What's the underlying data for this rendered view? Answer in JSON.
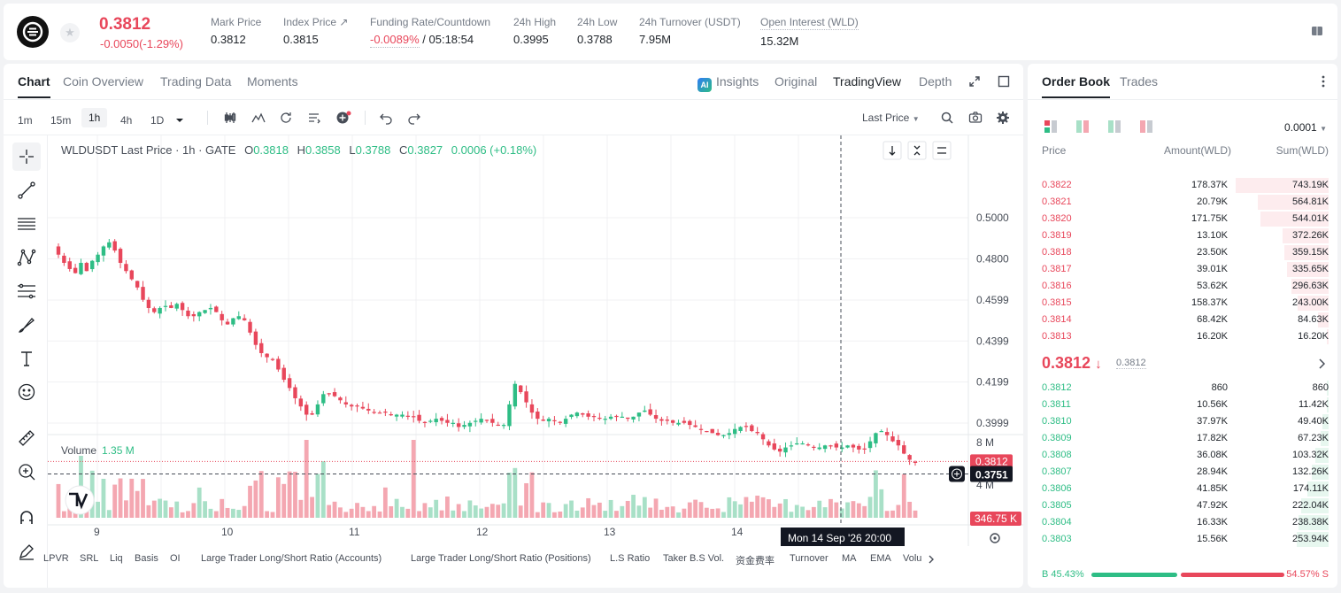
{
  "header": {
    "last_price": "0.3812",
    "change": "-0.0050(-1.29%)",
    "stats": [
      {
        "label": "Mark Price",
        "value": "0.3812"
      },
      {
        "label": "Index Price ↗",
        "value": "0.3815"
      },
      {
        "label": "Funding Rate/Countdown",
        "value_neg": "-0.0089%",
        "value": " / 05:18:54"
      },
      {
        "label": "24h High",
        "value": "0.3995"
      },
      {
        "label": "24h Low",
        "value": "0.3788"
      },
      {
        "label": "24h Turnover (USDT)",
        "value": "7.95M"
      },
      {
        "label": "Open Interest (WLD)",
        "value": "15.32M"
      }
    ]
  },
  "chart_tabs": [
    "Chart",
    "Coin Overview",
    "Trading Data",
    "Moments"
  ],
  "view_tabs": {
    "insights": "Insights",
    "original": "Original",
    "tradingview": "TradingView",
    "depth": "Depth"
  },
  "timeframes": [
    "1m",
    "15m",
    "1h",
    "4h",
    "1D"
  ],
  "price_type": "Last Price",
  "legend": {
    "symbol": "WLDUSDT Last Price · 1h · GATE",
    "o_label": "O",
    "o": "0.3818",
    "h_label": "H",
    "h": "0.3858",
    "l_label": "L",
    "l": "0.3788",
    "c_label": "C",
    "c": "0.3827",
    "chg": "0.0006 (+0.18%)"
  },
  "volume_legend": {
    "label": "Volume",
    "value": "1.35 M"
  },
  "price_axis": [
    "0.5000",
    "0.4800",
    "0.4599",
    "0.4399",
    "0.4199",
    "0.3999"
  ],
  "last_price_tag": "0.3812",
  "crosshair_price": "0.3751",
  "volume_axis": [
    "8 M",
    "4 M"
  ],
  "volume_tag": "346.75 K",
  "x_axis": [
    "9",
    "10",
    "11",
    "12",
    "13",
    "14"
  ],
  "crosshair_time": "Mon 14 Sep '26   20:00",
  "indicators": [
    "LPVR",
    "SRL",
    "Liq",
    "Basis",
    "OI",
    "Large Trader Long/Short Ratio (Accounts)",
    "Large Trader Long/Short Ratio (Positions)",
    "L.S Ratio",
    "Taker B.S Vol.",
    "资金费率",
    "Turnover",
    "MA",
    "EMA",
    "Volu"
  ],
  "orderbook": {
    "tabs": [
      "Order Book",
      "Trades"
    ],
    "precision": "0.0001",
    "headers": {
      "price": "Price",
      "amount": "Amount(WLD)",
      "sum": "Sum(WLD)"
    },
    "asks": [
      {
        "price": "0.3822",
        "amount": "178.37K",
        "sum": "743.19K",
        "depth": 1.0
      },
      {
        "price": "0.3821",
        "amount": "20.79K",
        "sum": "564.81K",
        "depth": 0.76
      },
      {
        "price": "0.3820",
        "amount": "171.75K",
        "sum": "544.01K",
        "depth": 0.73
      },
      {
        "price": "0.3819",
        "amount": "13.10K",
        "sum": "372.26K",
        "depth": 0.5
      },
      {
        "price": "0.3818",
        "amount": "23.50K",
        "sum": "359.15K",
        "depth": 0.48
      },
      {
        "price": "0.3817",
        "amount": "39.01K",
        "sum": "335.65K",
        "depth": 0.45
      },
      {
        "price": "0.3816",
        "amount": "53.62K",
        "sum": "296.63K",
        "depth": 0.4
      },
      {
        "price": "0.3815",
        "amount": "158.37K",
        "sum": "243.00K",
        "depth": 0.33
      },
      {
        "price": "0.3814",
        "amount": "68.42K",
        "sum": "84.63K",
        "depth": 0.11
      },
      {
        "price": "0.3813",
        "amount": "16.20K",
        "sum": "16.20K",
        "depth": 0.02
      }
    ],
    "mid_price": "0.3812",
    "mid_arrow": "↓",
    "mid_mark": "0.3812",
    "bids": [
      {
        "price": "0.3812",
        "amount": "860",
        "sum": "860",
        "depth": 0.0
      },
      {
        "price": "0.3811",
        "amount": "10.56K",
        "sum": "11.42K",
        "depth": 0.02
      },
      {
        "price": "0.3810",
        "amount": "37.97K",
        "sum": "49.40K",
        "depth": 0.07
      },
      {
        "price": "0.3809",
        "amount": "17.82K",
        "sum": "67.23K",
        "depth": 0.09
      },
      {
        "price": "0.3808",
        "amount": "36.08K",
        "sum": "103.32K",
        "depth": 0.14
      },
      {
        "price": "0.3807",
        "amount": "28.94K",
        "sum": "132.26K",
        "depth": 0.18
      },
      {
        "price": "0.3806",
        "amount": "41.85K",
        "sum": "174.11K",
        "depth": 0.23
      },
      {
        "price": "0.3805",
        "amount": "47.92K",
        "sum": "222.04K",
        "depth": 0.3
      },
      {
        "price": "0.3804",
        "amount": "16.33K",
        "sum": "238.38K",
        "depth": 0.32
      },
      {
        "price": "0.3803",
        "amount": "15.56K",
        "sum": "253.94K",
        "depth": 0.34
      }
    ],
    "buy_ratio": "B 45.43%",
    "sell_ratio": "54.57% S",
    "buy_fraction": 0.4543
  },
  "colors": {
    "up": "#2ebd85",
    "down": "#e8475b",
    "up_vol": "#a8e0c7",
    "down_vol": "#f4a7b1"
  },
  "chart_data": {
    "type": "candlestick",
    "symbol": "WLDUSDT",
    "interval": "1h",
    "x_ticks": [
      "9",
      "10",
      "11",
      "12",
      "13",
      "14"
    ],
    "y_ticks": [
      0.5,
      0.48,
      0.4599,
      0.4399,
      0.4199,
      0.3999
    ],
    "close_path": [
      0.482,
      0.478,
      0.475,
      0.473,
      0.478,
      0.474,
      0.479,
      0.482,
      0.486,
      0.488,
      0.484,
      0.478,
      0.474,
      0.47,
      0.466,
      0.46,
      0.456,
      0.454,
      0.456,
      0.457,
      0.456,
      0.458,
      0.455,
      0.452,
      0.452,
      0.454,
      0.455,
      0.456,
      0.454,
      0.45,
      0.448,
      0.451,
      0.452,
      0.45,
      0.444,
      0.438,
      0.434,
      0.432,
      0.431,
      0.426,
      0.421,
      0.417,
      0.412,
      0.408,
      0.404,
      0.404,
      0.409,
      0.414,
      0.414,
      0.413,
      0.411,
      0.409,
      0.408,
      0.408,
      0.407,
      0.406,
      0.405,
      0.405,
      0.405,
      0.404,
      0.404,
      0.404,
      0.403,
      0.403,
      0.401,
      0.4,
      0.401,
      0.402,
      0.401,
      0.4,
      0.4,
      0.398,
      0.399,
      0.4,
      0.401,
      0.402,
      0.401,
      0.4,
      0.399,
      0.399,
      0.409,
      0.419,
      0.415,
      0.41,
      0.405,
      0.402,
      0.401,
      0.402,
      0.401,
      0.4,
      0.402,
      0.404,
      0.405,
      0.404,
      0.403,
      0.403,
      0.402,
      0.402,
      0.403,
      0.403,
      0.403,
      0.402,
      0.403,
      0.405,
      0.406,
      0.404,
      0.402,
      0.401,
      0.401,
      0.4,
      0.4,
      0.4,
      0.399,
      0.398,
      0.397,
      0.396,
      0.395,
      0.394,
      0.394,
      0.395,
      0.397,
      0.398,
      0.398,
      0.396,
      0.395,
      0.392,
      0.389,
      0.387,
      0.386,
      0.388,
      0.389,
      0.39,
      0.39,
      0.389,
      0.388,
      0.388,
      0.389,
      0.389,
      0.388,
      0.388,
      0.389,
      0.388,
      0.387,
      0.387,
      0.391,
      0.395,
      0.396,
      0.394,
      0.391,
      0.389,
      0.385,
      0.382,
      0.381
    ],
    "current_price": 0.3812,
    "crosshair_price": 0.3751,
    "volume_label": "1.35 M",
    "volume_ticks": [
      "8 M",
      "4 M"
    ]
  }
}
